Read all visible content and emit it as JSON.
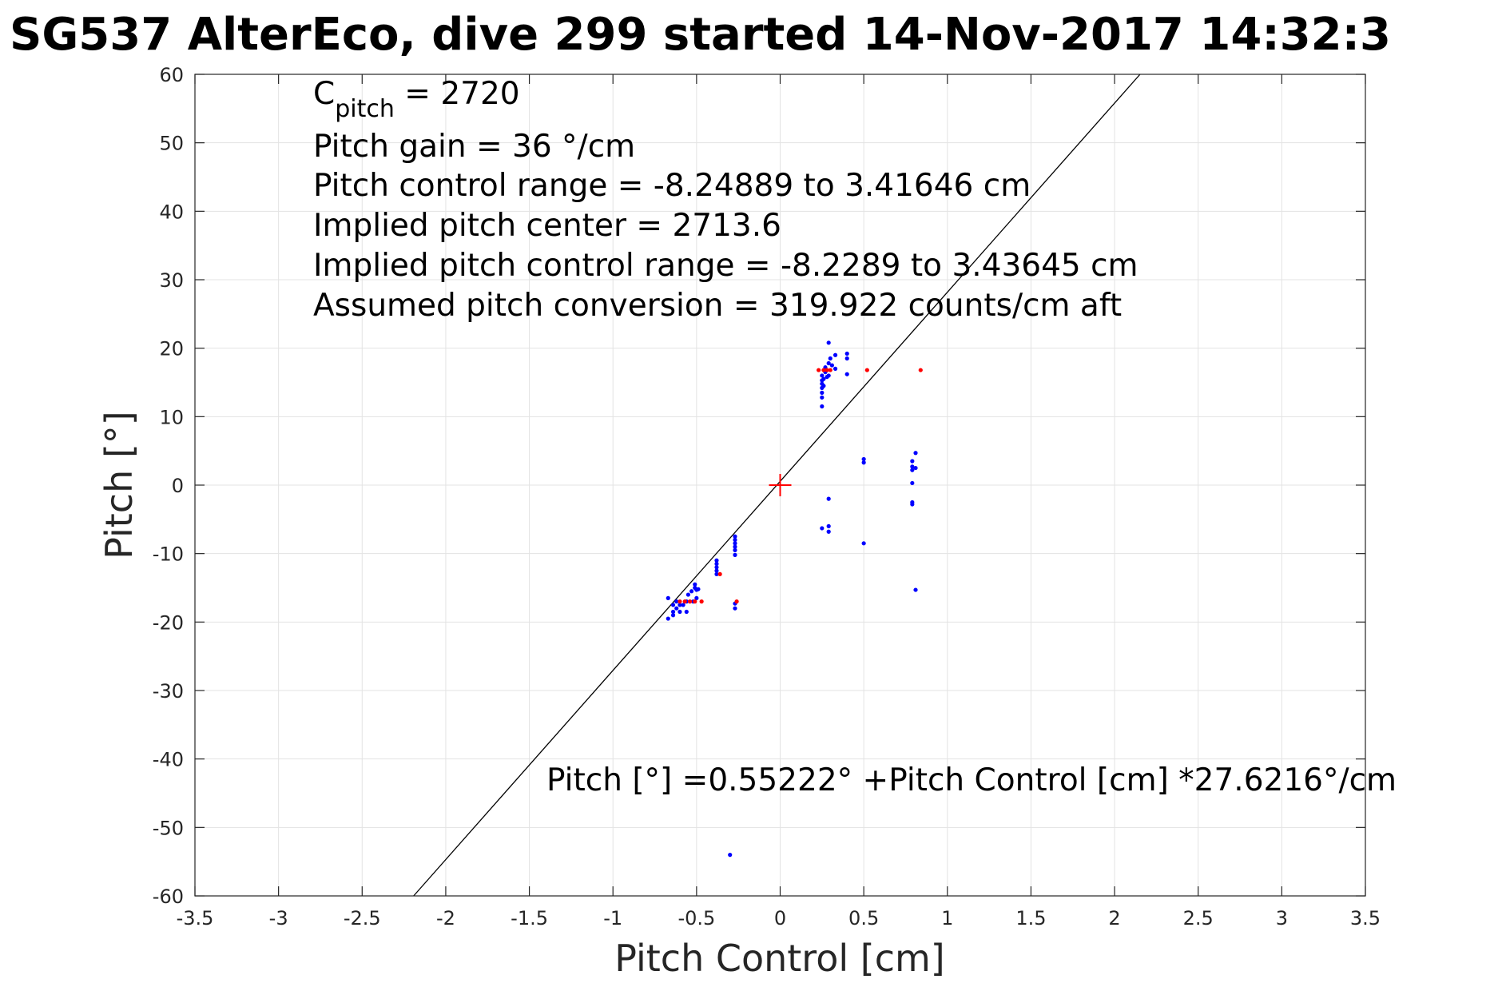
{
  "chart_data": {
    "type": "scatter",
    "title": "SG537 AlterEco, dive 299 started 14-Nov-2017 14:32:3",
    "xlabel": "Pitch Control [cm]",
    "ylabel": "Pitch [°]",
    "xlim": [
      -3.5,
      3.5
    ],
    "ylim": [
      -60,
      60
    ],
    "xticks": [
      -3.5,
      -3,
      -2.5,
      -2,
      -1.5,
      -1,
      -0.5,
      0,
      0.5,
      1,
      1.5,
      2,
      2.5,
      3,
      3.5
    ],
    "xtick_labels": [
      "-3.5",
      "-3",
      "-2.5",
      "-2",
      "-1.5",
      "-1",
      "-0.5",
      "0",
      "0.5",
      "1",
      "1.5",
      "2",
      "2.5",
      "3",
      "3.5"
    ],
    "yticks": [
      -60,
      -50,
      -40,
      -30,
      -20,
      -10,
      0,
      10,
      20,
      30,
      40,
      50,
      60
    ],
    "ytick_labels": [
      "-60",
      "-50",
      "-40",
      "-30",
      "-20",
      "-10",
      "0",
      "10",
      "20",
      "30",
      "40",
      "50",
      "60"
    ],
    "grid": true,
    "annotations": {
      "c_pitch_symbol": "C",
      "c_pitch_subscript": "pitch",
      "c_pitch_value": " = 2720",
      "lines": [
        "Pitch gain = 36 °/cm",
        "Pitch control range = -8.24889 to 3.41646 cm",
        "Implied pitch center = 2713.6",
        "Implied pitch control range = -8.2289 to 3.43645 cm",
        "Assumed pitch conversion = 319.922 counts/cm aft"
      ],
      "fit_equation": "Pitch [°] =0.55222° +Pitch Control [cm] *27.6216°/cm"
    },
    "fit_line": {
      "intercept": 0.55222,
      "slope": 27.6216,
      "color": "#000000"
    },
    "center_marker": {
      "x": 0,
      "y": 0,
      "color": "#ff0000"
    },
    "series": [
      {
        "color": "#0000ff",
        "points": [
          [
            -0.67,
            -16.5
          ],
          [
            -0.67,
            -19.5
          ],
          [
            -0.64,
            -17.5
          ],
          [
            -0.64,
            -18.5
          ],
          [
            -0.64,
            -19.0
          ],
          [
            -0.62,
            -17.0
          ],
          [
            -0.62,
            -18.0
          ],
          [
            -0.6,
            -17.5
          ],
          [
            -0.6,
            -18.5
          ],
          [
            -0.58,
            -17.5
          ],
          [
            -0.56,
            -17.0
          ],
          [
            -0.56,
            -18.5
          ],
          [
            -0.55,
            -16.0
          ],
          [
            -0.53,
            -15.5
          ],
          [
            -0.52,
            -17.0
          ],
          [
            -0.51,
            -14.5
          ],
          [
            -0.51,
            -15.0
          ],
          [
            -0.5,
            -15.3
          ],
          [
            -0.5,
            -16.5
          ],
          [
            -0.49,
            -15.2
          ],
          [
            -0.38,
            -11.0
          ],
          [
            -0.38,
            -11.5
          ],
          [
            -0.38,
            -12.0
          ],
          [
            -0.38,
            -12.5
          ],
          [
            -0.38,
            -13.0
          ],
          [
            -0.27,
            -7.5
          ],
          [
            -0.27,
            -8.0
          ],
          [
            -0.27,
            -8.5
          ],
          [
            -0.27,
            -9.0
          ],
          [
            -0.27,
            -9.5
          ],
          [
            -0.27,
            -10.2
          ],
          [
            -0.27,
            -17.3
          ],
          [
            -0.27,
            -18.0
          ],
          [
            -0.3,
            -54.0
          ],
          [
            0.25,
            11.5
          ],
          [
            0.25,
            12.8
          ],
          [
            0.25,
            13.5
          ],
          [
            0.25,
            14.2
          ],
          [
            0.25,
            14.8
          ],
          [
            0.25,
            15.3
          ],
          [
            0.25,
            16.0
          ],
          [
            0.26,
            14.5
          ],
          [
            0.26,
            15.5
          ],
          [
            0.27,
            16.5
          ],
          [
            0.27,
            17.2
          ],
          [
            0.28,
            15.8
          ],
          [
            0.29,
            17.8
          ],
          [
            0.29,
            16.0
          ],
          [
            0.3,
            18.5
          ],
          [
            0.29,
            20.8
          ],
          [
            0.31,
            17.5
          ],
          [
            0.33,
            17.0
          ],
          [
            0.33,
            19.0
          ],
          [
            0.4,
            18.5
          ],
          [
            0.4,
            19.2
          ],
          [
            0.4,
            16.2
          ],
          [
            0.25,
            -6.3
          ],
          [
            0.29,
            -6.0
          ],
          [
            0.29,
            -6.8
          ],
          [
            0.29,
            -2.0
          ],
          [
            0.5,
            3.3
          ],
          [
            0.5,
            3.8
          ],
          [
            0.5,
            -8.5
          ],
          [
            0.79,
            3.5
          ],
          [
            0.79,
            2.7
          ],
          [
            0.79,
            2.2
          ],
          [
            0.79,
            0.3
          ],
          [
            0.79,
            -2.5
          ],
          [
            0.79,
            -2.8
          ],
          [
            0.81,
            4.7
          ],
          [
            0.81,
            2.5
          ],
          [
            0.81,
            -15.3
          ]
        ]
      },
      {
        "color": "#ff0000",
        "points": [
          [
            -0.6,
            -17.0
          ],
          [
            -0.57,
            -17.0
          ],
          [
            -0.54,
            -17.0
          ],
          [
            -0.51,
            -17.0
          ],
          [
            -0.47,
            -17.0
          ],
          [
            -0.36,
            -13.0
          ],
          [
            -0.26,
            -17.0
          ],
          [
            0.23,
            16.8
          ],
          [
            0.26,
            16.8
          ],
          [
            0.28,
            16.8
          ],
          [
            0.3,
            16.8
          ],
          [
            0.52,
            16.8
          ],
          [
            0.84,
            16.8
          ]
        ]
      }
    ]
  }
}
